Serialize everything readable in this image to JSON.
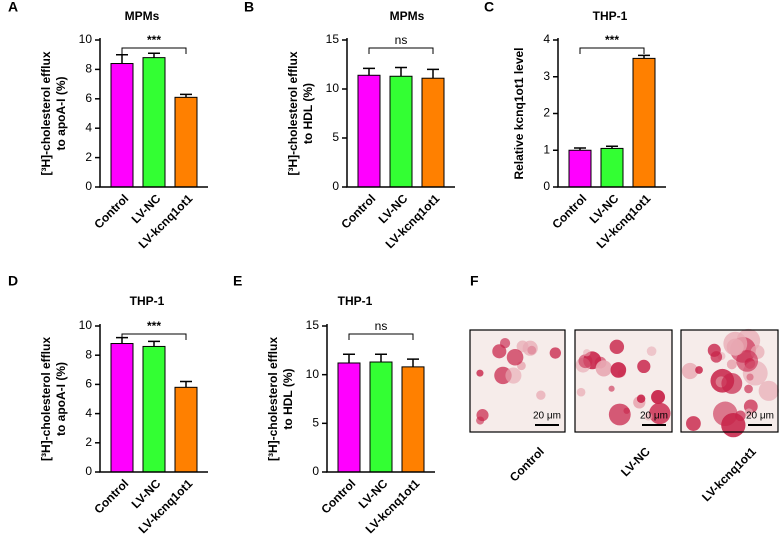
{
  "chart_data": [
    {
      "type": "bar",
      "panel": "A",
      "title": "MPMs",
      "ylabel": [
        "[³H]-cholesterol efflux",
        "to apoA-I (%)"
      ],
      "categories": [
        "Control",
        "LV-NC",
        "LV-kcnq1ot1"
      ],
      "values": [
        8.4,
        8.8,
        6.1
      ],
      "errors": [
        0.6,
        0.3,
        0.2
      ],
      "colors": [
        "#ff00ff",
        "#33ff33",
        "#ff8000"
      ],
      "ylim": [
        0,
        10
      ],
      "yticks": [
        0,
        2,
        4,
        6,
        8,
        10
      ],
      "significance": "***"
    },
    {
      "type": "bar",
      "panel": "B",
      "title": "MPMs",
      "ylabel": [
        "[³H]-cholesterol efflux",
        "to HDL (%)"
      ],
      "categories": [
        "Control",
        "LV-NC",
        "LV-kcnq1ot1"
      ],
      "values": [
        11.4,
        11.3,
        11.1
      ],
      "errors": [
        0.7,
        0.9,
        0.9
      ],
      "colors": [
        "#ff00ff",
        "#33ff33",
        "#ff8000"
      ],
      "ylim": [
        0,
        15
      ],
      "yticks": [
        0,
        5,
        10,
        15
      ],
      "significance": "ns"
    },
    {
      "type": "bar",
      "panel": "C",
      "title": "THP-1",
      "ylabel": [
        "Relative kcnq1ot1 level"
      ],
      "categories": [
        "Control",
        "LV-NC",
        "LV-kcnq1ot1"
      ],
      "values": [
        1.0,
        1.05,
        3.5
      ],
      "errors": [
        0.06,
        0.06,
        0.08
      ],
      "colors": [
        "#ff00ff",
        "#33ff33",
        "#ff8000"
      ],
      "ylim": [
        0,
        4
      ],
      "yticks": [
        0,
        1,
        2,
        3,
        4
      ],
      "significance": "***"
    },
    {
      "type": "bar",
      "panel": "D",
      "title": "THP-1",
      "ylabel": [
        "[³H]-cholesterol efflux",
        "to apoA-I (%)"
      ],
      "categories": [
        "Control",
        "LV-NC",
        "LV-kcnq1ot1"
      ],
      "values": [
        8.8,
        8.6,
        5.8
      ],
      "errors": [
        0.4,
        0.35,
        0.4
      ],
      "colors": [
        "#ff00ff",
        "#33ff33",
        "#ff8000"
      ],
      "ylim": [
        0,
        10
      ],
      "yticks": [
        0,
        2,
        4,
        6,
        8,
        10
      ],
      "significance": "***"
    },
    {
      "type": "bar",
      "panel": "E",
      "title": "THP-1",
      "ylabel": [
        "[³H]-cholesterol efflux",
        "to HDL (%)"
      ],
      "categories": [
        "Control",
        "LV-NC",
        "LV-kcnq1ot1"
      ],
      "values": [
        11.2,
        11.3,
        10.8
      ],
      "errors": [
        0.9,
        0.8,
        0.8
      ],
      "colors": [
        "#ff00ff",
        "#33ff33",
        "#ff8000"
      ],
      "ylim": [
        0,
        15
      ],
      "yticks": [
        0,
        5,
        10,
        15
      ],
      "significance": "ns"
    }
  ],
  "image_panel": {
    "panel": "F",
    "labels": [
      "Control",
      "LV-NC",
      "LV-kcnq1ot1"
    ],
    "scale_bars": [
      "20 μm",
      "20 μm",
      "20 μm"
    ]
  }
}
